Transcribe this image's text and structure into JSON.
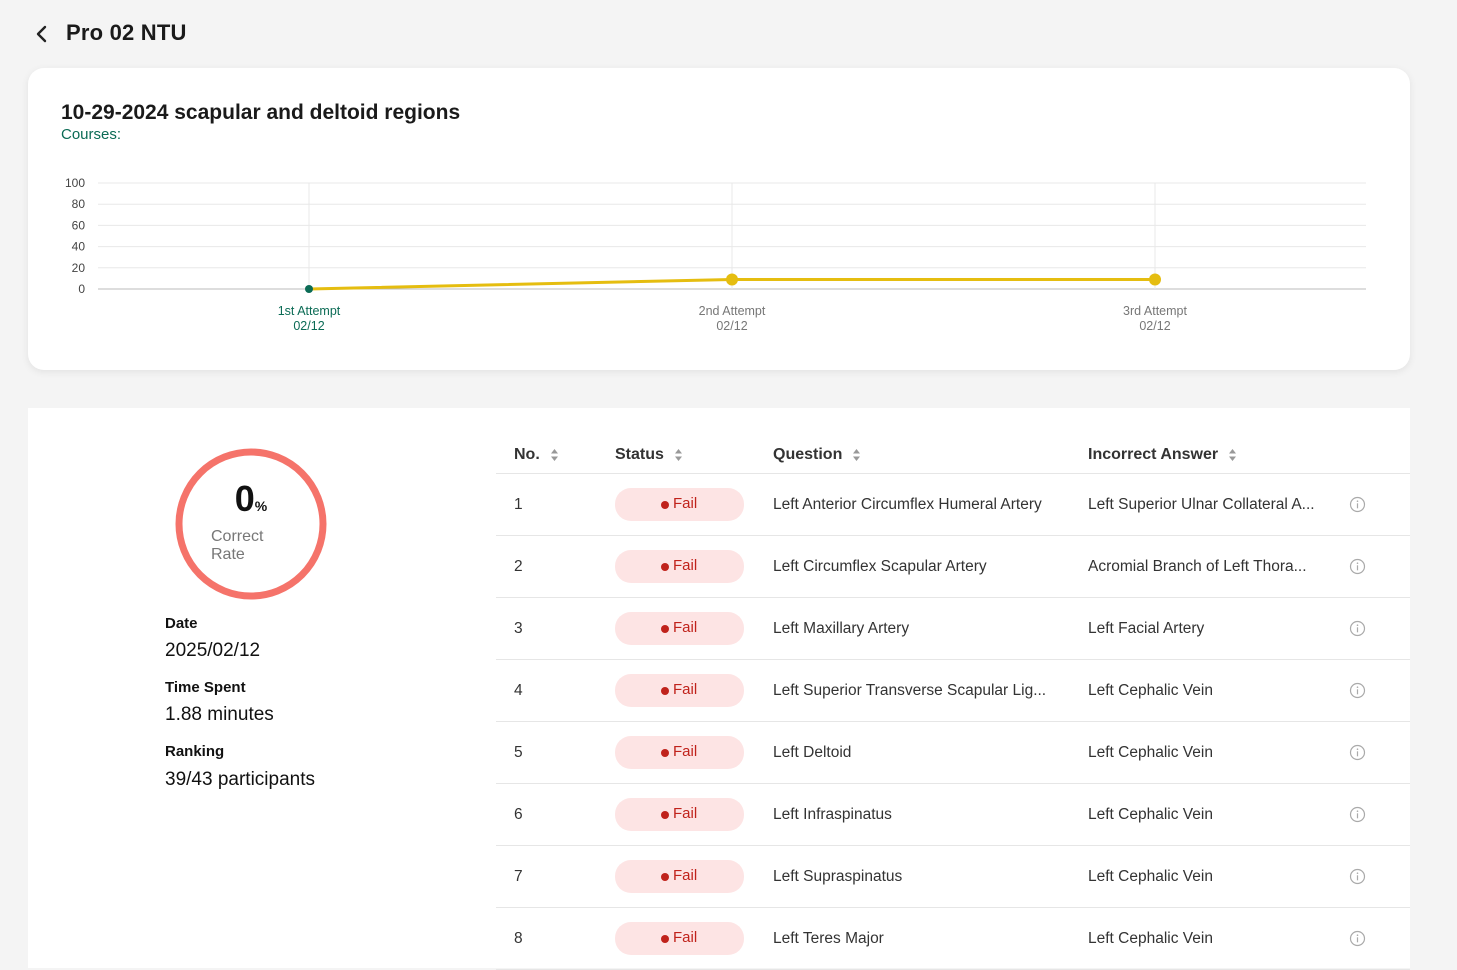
{
  "header": {
    "title": "Pro 02 NTU"
  },
  "chart_card": {
    "title": "10-29-2024 scapular and deltoid regions",
    "subtitle": "Courses:"
  },
  "chart_data": {
    "type": "line",
    "categories": [
      "1st Attempt",
      "2nd Attempt",
      "3rd Attempt"
    ],
    "category_dates": [
      "02/12",
      "02/12",
      "02/12"
    ],
    "series": [
      {
        "values": [
          0,
          9,
          9
        ]
      }
    ],
    "yticks": [
      0,
      20,
      40,
      60,
      80,
      100
    ],
    "ylim": [
      0,
      100
    ],
    "grid": true,
    "colors": {
      "line": "#e5bd10",
      "first_point": "#0b6b55",
      "first_label": "#0b6b55",
      "other_label": "#777777"
    }
  },
  "summary": {
    "correct_rate_value": "0",
    "correct_rate_unit": "%",
    "correct_rate_label_line1": "Correct",
    "correct_rate_label_line2": "Rate",
    "ring_color": "#f5736a",
    "date_label": "Date",
    "date_value": "2025/02/12",
    "time_label": "Time Spent",
    "time_value": "1.88 minutes",
    "ranking_label": "Ranking",
    "ranking_value": "39/43 participants"
  },
  "table": {
    "columns": [
      "No.",
      "Status",
      "Question",
      "Incorrect Answer"
    ],
    "rows": [
      {
        "no": "1",
        "status": "Fail",
        "question": "Left Anterior Circumflex Humeral Artery",
        "answer": "Left Superior Ulnar Collateral A..."
      },
      {
        "no": "2",
        "status": "Fail",
        "question": "Left Circumflex Scapular Artery",
        "answer": "Acromial Branch of Left Thora..."
      },
      {
        "no": "3",
        "status": "Fail",
        "question": "Left Maxillary Artery",
        "answer": "Left Facial Artery"
      },
      {
        "no": "4",
        "status": "Fail",
        "question": "Left Superior Transverse Scapular Lig...",
        "answer": "Left Cephalic Vein"
      },
      {
        "no": "5",
        "status": "Fail",
        "question": "Left Deltoid",
        "answer": "Left Cephalic Vein"
      },
      {
        "no": "6",
        "status": "Fail",
        "question": "Left Infraspinatus",
        "answer": "Left Cephalic Vein"
      },
      {
        "no": "7",
        "status": "Fail",
        "question": "Left Supraspinatus",
        "answer": "Left Cephalic Vein"
      },
      {
        "no": "8",
        "status": "Fail",
        "question": "Left Teres Major",
        "answer": "Left Cephalic Vein"
      }
    ]
  }
}
